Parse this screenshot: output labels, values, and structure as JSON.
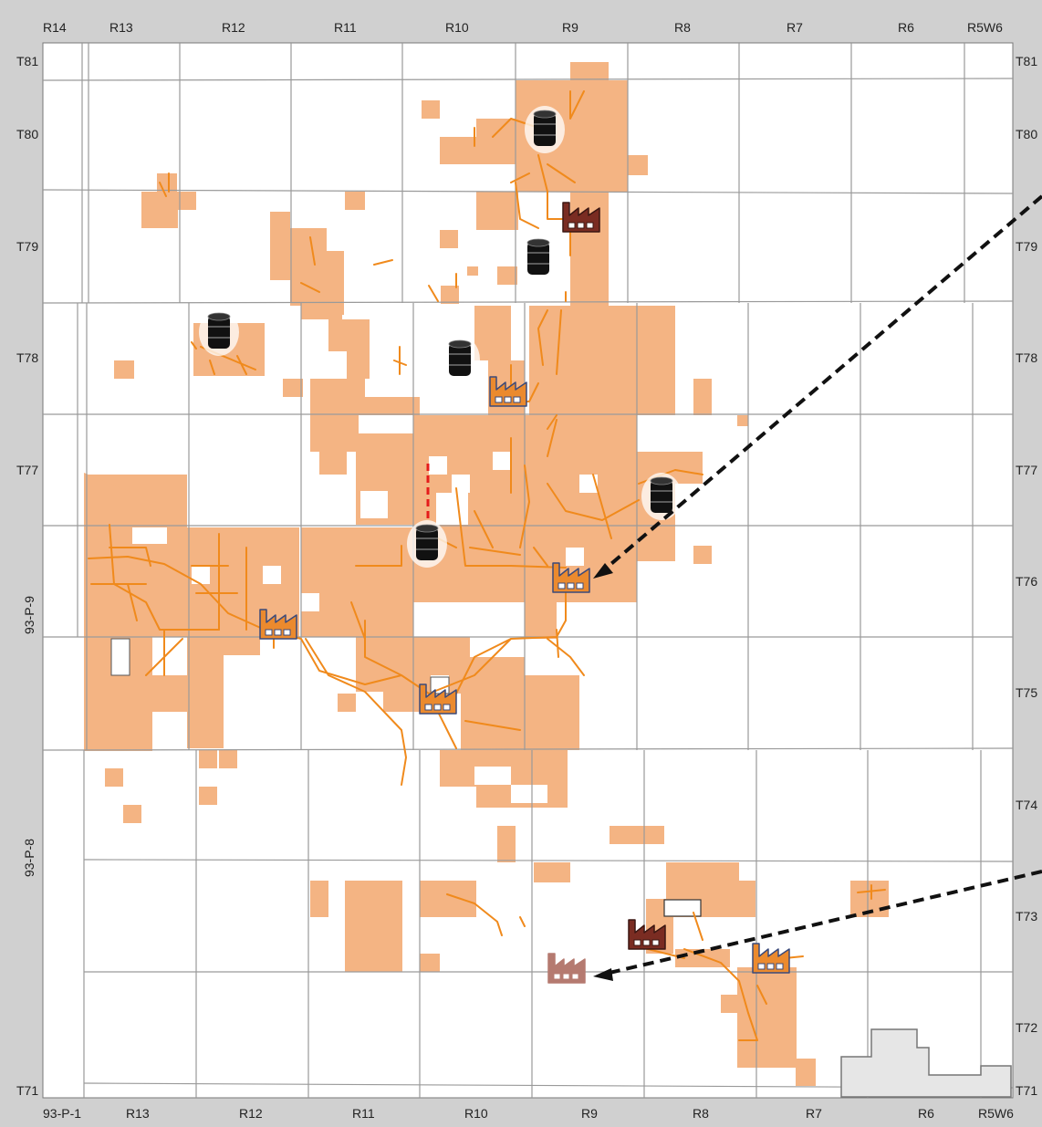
{
  "map": {
    "top_ranges": [
      "R14",
      "R13",
      "R12",
      "R11",
      "R10",
      "R9",
      "R8",
      "R7",
      "R6",
      "R5W6"
    ],
    "bottom_ranges": [
      "93-P-1",
      "R13",
      "R12",
      "R11",
      "R10",
      "R9",
      "R8",
      "R7",
      "R6",
      "R5W6"
    ],
    "left_townships": [
      "T81",
      "T80",
      "T79",
      "T78",
      "T77",
      "T71"
    ],
    "right_townships": [
      "T81",
      "T80",
      "T79",
      "T78",
      "T77",
      "T76",
      "T75",
      "T74",
      "T73",
      "T72",
      "T71"
    ],
    "side_sheets": [
      "93-P-9",
      "93-P-8"
    ],
    "colors": {
      "lease": "#f4b483",
      "pipeline": "#f08a1c",
      "grid": "#9a9a9a",
      "arrow": "#111111",
      "plant_icon": "#eb8a2e",
      "plant_dark": "#7a2c22",
      "plant_faded": "#b57a70",
      "barrel": "#111111",
      "flag_dash": "#e51b1b",
      "outline_area": "#e6e6e6"
    },
    "icons": {
      "barrels": [
        "oil-barrel-icon",
        "oil-barrel-icon",
        "oil-barrel-icon",
        "oil-barrel-icon",
        "oil-barrel-icon",
        "oil-barrel-icon",
        "oil-barrel-icon"
      ],
      "plants": [
        "gas-plant-icon",
        "gas-plant-icon",
        "gas-plant-icon",
        "gas-plant-icon",
        "gas-plant-icon",
        "gas-plant-icon",
        "gas-plant-icon",
        "gas-plant-icon"
      ]
    }
  }
}
